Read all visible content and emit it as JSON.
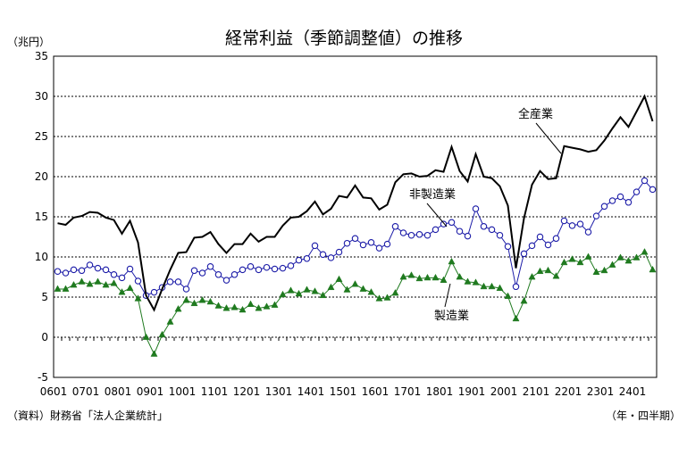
{
  "chart_data": {
    "type": "line",
    "title": "経常利益（季節調整値）の推移",
    "ylabel": "（兆円）",
    "xlabel": "（年・四半期）",
    "source": "（資料）財務省「法人企業統計」",
    "ylim": [
      -5,
      35
    ],
    "yticks": [
      "-5",
      "0",
      "5",
      "10",
      "15",
      "20",
      "25",
      "30",
      "35"
    ],
    "xtick_labels": [
      "0601",
      "0701",
      "0801",
      "0901",
      "1001",
      "1101",
      "1201",
      "1301",
      "1401",
      "1501",
      "1601",
      "1701",
      "1801",
      "1901",
      "2001",
      "2101",
      "2201",
      "2301",
      "2401"
    ],
    "grid": true,
    "series": [
      {
        "name": "全産業",
        "color": "#000000",
        "marker": "none",
        "values": [
          14.2,
          14.0,
          14.9,
          15.1,
          15.6,
          15.5,
          14.9,
          14.6,
          12.9,
          14.5,
          11.8,
          5.2,
          3.4,
          6.0,
          8.4,
          10.5,
          10.6,
          12.4,
          12.5,
          13.1,
          11.6,
          10.5,
          11.6,
          11.6,
          12.9,
          11.9,
          12.5,
          12.5,
          13.9,
          14.9,
          15.0,
          15.7,
          16.9,
          15.3,
          16.0,
          17.6,
          17.4,
          18.9,
          17.4,
          17.3,
          15.9,
          16.5,
          19.3,
          20.3,
          20.4,
          20.0,
          20.1,
          20.8,
          20.6,
          23.7,
          20.7,
          19.4,
          22.8,
          20.0,
          19.8,
          18.8,
          16.4,
          8.6,
          14.8,
          19.0,
          20.7,
          19.7,
          19.8,
          23.8,
          23.6,
          23.4,
          23.1,
          23.3,
          24.5,
          26.0,
          27.4,
          26.2,
          28.1,
          30.0,
          26.9
        ]
      },
      {
        "name": "非製造業",
        "color": "#1c1ca8",
        "marker": "circle",
        "values": [
          8.2,
          8.0,
          8.4,
          8.3,
          9.0,
          8.6,
          8.4,
          7.8,
          7.4,
          8.5,
          7.0,
          5.2,
          5.6,
          6.2,
          6.9,
          6.9,
          6.0,
          8.3,
          8.0,
          8.8,
          7.8,
          7.1,
          7.8,
          8.4,
          8.8,
          8.4,
          8.7,
          8.5,
          8.6,
          8.9,
          9.6,
          9.8,
          11.4,
          10.3,
          9.9,
          10.6,
          11.7,
          12.3,
          11.5,
          11.8,
          11.1,
          11.6,
          13.8,
          13.0,
          12.7,
          12.8,
          12.7,
          13.4,
          14.1,
          14.3,
          13.2,
          12.6,
          16.0,
          13.8,
          13.4,
          12.7,
          11.3,
          6.3,
          10.4,
          11.4,
          12.5,
          11.5,
          12.3,
          14.5,
          13.9,
          14.1,
          13.1,
          15.1,
          16.3,
          17.0,
          17.5,
          16.8,
          18.1,
          19.5,
          18.4
        ]
      },
      {
        "name": "製造業",
        "color": "#1f7a1f",
        "marker": "triangle",
        "values": [
          6.0,
          6.0,
          6.5,
          6.9,
          6.6,
          6.9,
          6.5,
          6.7,
          5.6,
          6.1,
          4.8,
          0.0,
          -2.1,
          0.3,
          1.9,
          3.5,
          4.6,
          4.2,
          4.6,
          4.4,
          3.9,
          3.6,
          3.7,
          3.4,
          4.1,
          3.6,
          3.8,
          4.0,
          5.3,
          5.8,
          5.4,
          5.9,
          5.7,
          5.2,
          6.2,
          7.2,
          5.9,
          6.6,
          6.0,
          5.6,
          4.8,
          4.9,
          5.5,
          7.5,
          7.7,
          7.3,
          7.4,
          7.4,
          7.1,
          9.4,
          7.5,
          6.9,
          6.8,
          6.3,
          6.3,
          6.1,
          5.1,
          2.3,
          4.5,
          7.5,
          8.2,
          8.3,
          7.6,
          9.3,
          9.7,
          9.3,
          10.0,
          8.1,
          8.3,
          9.0,
          9.9,
          9.5,
          9.9,
          10.6,
          8.4
        ]
      }
    ]
  }
}
